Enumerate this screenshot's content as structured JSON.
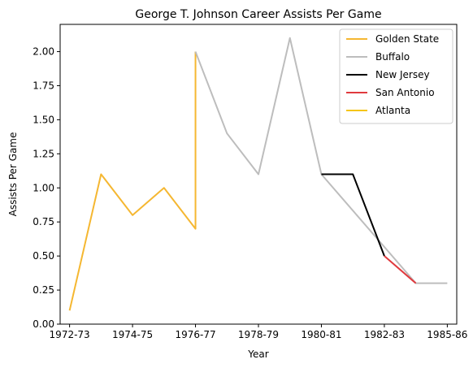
{
  "chart_data": {
    "type": "line",
    "title": "George T. Johnson Career Assists Per Game",
    "xlabel": "Year",
    "ylabel": "Assists Per Game",
    "x_ticks": [
      "1972-73",
      "1974-75",
      "1976-77",
      "1978-79",
      "1980-81",
      "1982-83",
      "1985-86"
    ],
    "x_tick_positions": [
      0,
      2,
      4,
      6,
      8,
      10,
      12
    ],
    "xlim": [
      -0.3,
      12.3
    ],
    "ylim": [
      0,
      2.2
    ],
    "y_ticks": [
      "0.00",
      "0.25",
      "0.50",
      "0.75",
      "1.00",
      "1.25",
      "1.50",
      "1.75",
      "2.00"
    ],
    "y_tick_values": [
      0,
      0.25,
      0.5,
      0.75,
      1.0,
      1.25,
      1.5,
      1.75,
      2.0
    ],
    "grid": false,
    "legend_position": "top-right",
    "series": [
      {
        "name": "Golden State",
        "color": "#f5b731",
        "x": [
          0,
          1,
          2,
          3,
          4,
          4
        ],
        "y": [
          0.1,
          1.1,
          0.8,
          1.0,
          0.7,
          2.0
        ]
      },
      {
        "name": "Buffalo",
        "color": "#bdbdbd",
        "x": [
          4,
          5,
          6,
          7,
          8,
          11,
          12
        ],
        "y": [
          2.0,
          1.4,
          1.1,
          2.1,
          1.1,
          0.3,
          0.3
        ]
      },
      {
        "name": "New Jersey",
        "color": "#000000",
        "x": [
          8,
          9,
          10
        ],
        "y": [
          1.1,
          1.1,
          0.5
        ]
      },
      {
        "name": "San Antonio",
        "color": "#e03a3e",
        "x": [
          10,
          11
        ],
        "y": [
          0.5,
          0.3
        ]
      },
      {
        "name": "Atlanta",
        "color": "#f5c518",
        "x": [],
        "y": []
      }
    ]
  }
}
